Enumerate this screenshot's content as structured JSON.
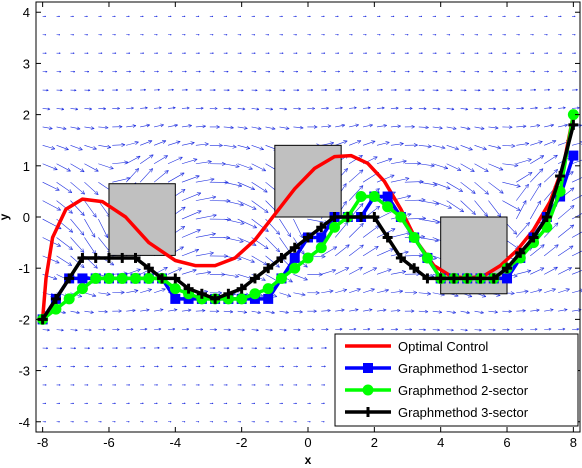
{
  "chart_data": {
    "type": "line",
    "xlabel": "x",
    "ylabel": "y",
    "xlim": [
      -8.2,
      8.2
    ],
    "ylim": [
      -4.2,
      4.2
    ],
    "xticks": [
      -8,
      -6,
      -4,
      -2,
      0,
      2,
      4,
      6,
      8
    ],
    "yticks": [
      -4,
      -3,
      -2,
      -1,
      0,
      1,
      2,
      3,
      4
    ],
    "grid": false,
    "legend_position": "bottom-right",
    "background_field": "vector-field-arrows",
    "obstacles": [
      {
        "x0": -6.0,
        "x1": -4.0,
        "y0": -0.75,
        "y1": 0.65
      },
      {
        "x0": -1.0,
        "x1": 1.0,
        "y0": 0.0,
        "y1": 1.4
      },
      {
        "x0": 4.0,
        "x1": 6.0,
        "y0": -1.5,
        "y1": 0.0
      }
    ],
    "series": [
      {
        "name": "Optimal Control",
        "color": "#ff0000",
        "marker": "none",
        "x": [
          -8,
          -7.9,
          -7.7,
          -7.3,
          -6.8,
          -6.2,
          -5.5,
          -4.8,
          -4.0,
          -3.4,
          -2.8,
          -2.2,
          -1.6,
          -1.0,
          -0.4,
          0.2,
          0.8,
          1.3,
          1.8,
          2.3,
          2.8,
          3.3,
          3.8,
          4.3,
          4.8,
          5.3,
          5.8,
          6.3,
          6.8,
          7.3,
          7.7,
          8.0
        ],
        "y": [
          -2.0,
          -1.2,
          -0.4,
          0.15,
          0.35,
          0.3,
          0.0,
          -0.5,
          -0.85,
          -0.95,
          -0.95,
          -0.8,
          -0.45,
          0.05,
          0.55,
          0.95,
          1.18,
          1.2,
          1.05,
          0.7,
          0.15,
          -0.5,
          -0.95,
          -1.15,
          -1.2,
          -1.15,
          -0.95,
          -0.65,
          -0.25,
          0.3,
          1.0,
          2.0
        ]
      },
      {
        "name": "Graphmethod 1-sector",
        "color": "#0000ff",
        "marker": "square",
        "x": [
          -8,
          -7.6,
          -7.2,
          -6.8,
          -6.4,
          -6.0,
          -5.6,
          -5.2,
          -4.8,
          -4.4,
          -4.0,
          -3.6,
          -3.2,
          -2.8,
          -2.4,
          -2.0,
          -1.6,
          -1.2,
          -0.8,
          -0.4,
          0,
          0.4,
          0.8,
          1.2,
          1.6,
          2.0,
          2.4,
          2.8,
          3.2,
          3.6,
          4.0,
          4.4,
          4.8,
          5.2,
          5.6,
          6.0,
          6.4,
          6.8,
          7.2,
          7.6,
          8.0
        ],
        "y": [
          -2.0,
          -1.6,
          -1.2,
          -1.2,
          -1.2,
          -1.2,
          -1.2,
          -1.2,
          -1.2,
          -1.2,
          -1.6,
          -1.6,
          -1.6,
          -1.6,
          -1.6,
          -1.6,
          -1.6,
          -1.6,
          -1.2,
          -0.8,
          -0.4,
          -0.4,
          0,
          0,
          0,
          0.4,
          0.4,
          0,
          -0.4,
          -0.8,
          -1.2,
          -1.2,
          -1.2,
          -1.2,
          -1.2,
          -1.2,
          -0.8,
          -0.4,
          0,
          0.4,
          1.2
        ]
      },
      {
        "name": "Graphmethod 2-sector",
        "color": "#00ff00",
        "marker": "circle",
        "x": [
          -8,
          -7.6,
          -7.2,
          -6.8,
          -6.4,
          -6.0,
          -5.6,
          -5.2,
          -4.8,
          -4.4,
          -4.0,
          -3.6,
          -3.2,
          -2.8,
          -2.4,
          -2.0,
          -1.6,
          -1.2,
          -0.8,
          -0.4,
          0,
          0.4,
          0.8,
          1.2,
          1.6,
          2.0,
          2.4,
          2.8,
          3.2,
          3.6,
          4.0,
          4.4,
          4.8,
          5.2,
          5.6,
          6.0,
          6.4,
          6.8,
          7.2,
          7.6,
          8.0
        ],
        "y": [
          -2.0,
          -1.8,
          -1.6,
          -1.4,
          -1.2,
          -1.2,
          -1.2,
          -1.2,
          -1.2,
          -1.2,
          -1.4,
          -1.5,
          -1.6,
          -1.6,
          -1.6,
          -1.6,
          -1.5,
          -1.4,
          -1.2,
          -1.0,
          -0.8,
          -0.6,
          -0.2,
          0,
          0.4,
          0.4,
          0.2,
          0,
          -0.4,
          -0.8,
          -1.2,
          -1.2,
          -1.2,
          -1.2,
          -1.2,
          -1.0,
          -0.8,
          -0.5,
          -0.2,
          0.5,
          2.0
        ]
      },
      {
        "name": "Graphmethod 3-sector",
        "color": "#000000",
        "marker": "plus",
        "x": [
          -8,
          -7.6,
          -7.2,
          -6.8,
          -6.4,
          -6.0,
          -5.6,
          -5.2,
          -4.8,
          -4.4,
          -4.0,
          -3.6,
          -3.2,
          -2.8,
          -2.4,
          -2.0,
          -1.6,
          -1.2,
          -0.8,
          -0.4,
          0,
          0.4,
          0.8,
          1.2,
          1.6,
          2.0,
          2.4,
          2.8,
          3.2,
          3.6,
          4.0,
          4.4,
          4.8,
          5.2,
          5.6,
          6.0,
          6.4,
          6.8,
          7.2,
          7.6,
          8.0
        ],
        "y": [
          -2.0,
          -1.6,
          -1.2,
          -0.8,
          -0.8,
          -0.8,
          -0.8,
          -0.8,
          -1.0,
          -1.2,
          -1.2,
          -1.4,
          -1.5,
          -1.6,
          -1.5,
          -1.4,
          -1.2,
          -1.0,
          -0.8,
          -0.6,
          -0.4,
          -0.2,
          0,
          0,
          0,
          0,
          -0.4,
          -0.8,
          -1.0,
          -1.2,
          -1.2,
          -1.2,
          -1.2,
          -1.2,
          -1.2,
          -1.0,
          -0.7,
          -0.4,
          0,
          0.8,
          1.8
        ]
      }
    ]
  }
}
